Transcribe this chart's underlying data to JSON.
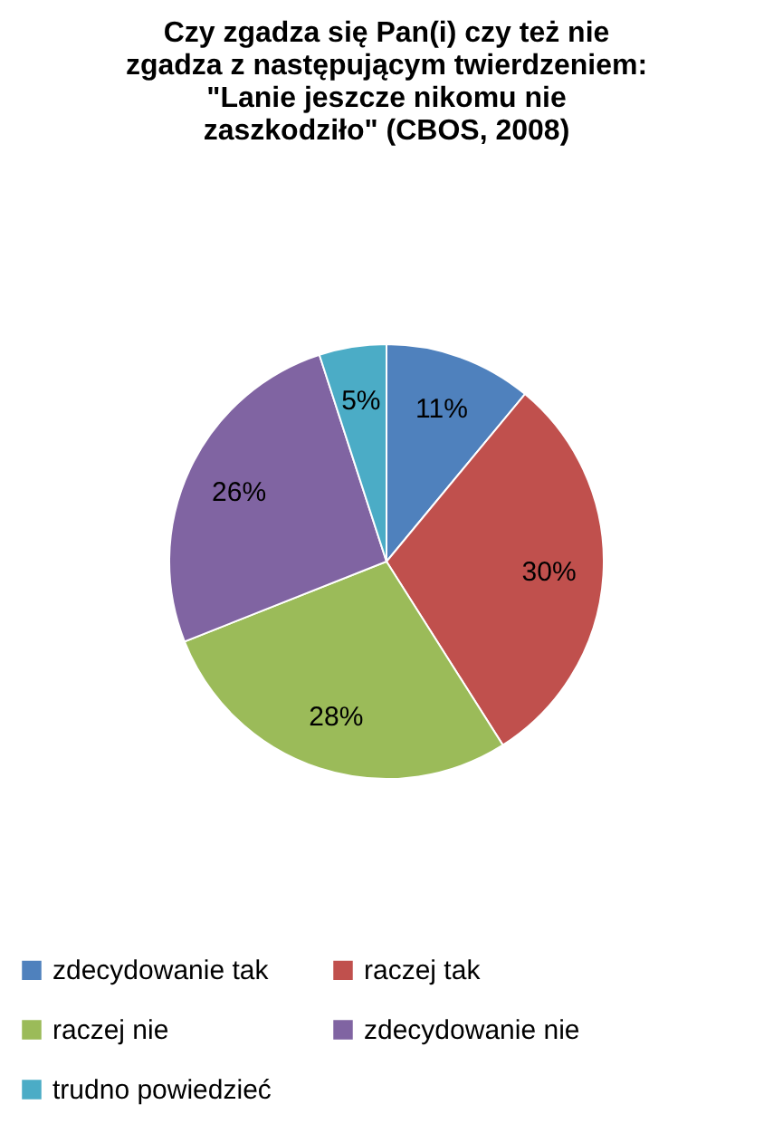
{
  "chart_data": {
    "type": "pie",
    "title": "Czy zgadza się Pan(i) czy też nie zgadza z następującym twierdzeniem: \"Lanie jeszcze nikomu nie zaszkodziło\" (CBOS, 2008)",
    "categories": [
      "zdecydowanie tak",
      "raczej tak",
      "raczej nie",
      "zdecydowanie nie",
      "trudno powiedzieć"
    ],
    "values": [
      11,
      30,
      28,
      26,
      5
    ],
    "value_labels": [
      "11%",
      "30%",
      "28%",
      "26%",
      "5%"
    ],
    "colors": [
      "#4f81bd",
      "#c0504d",
      "#9bbb59",
      "#8064a2",
      "#4bacc6"
    ],
    "legend": "bottom"
  }
}
